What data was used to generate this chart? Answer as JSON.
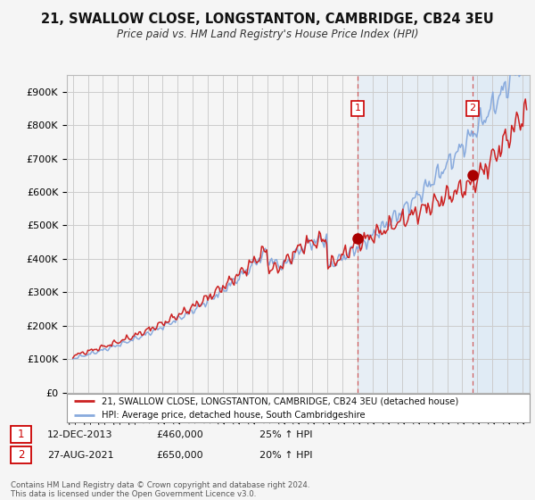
{
  "title": "21, SWALLOW CLOSE, LONGSTANTON, CAMBRIDGE, CB24 3EU",
  "subtitle": "Price paid vs. HM Land Registry's House Price Index (HPI)",
  "background_color": "#f5f5f5",
  "plot_background": "#f5f5f5",
  "grid_color": "#cccccc",
  "y_ticks": [
    0,
    100000,
    200000,
    300000,
    400000,
    500000,
    600000,
    700000,
    800000,
    900000
  ],
  "y_tick_labels": [
    "£0",
    "£100K",
    "£200K",
    "£300K",
    "£400K",
    "£500K",
    "£600K",
    "£700K",
    "£800K",
    "£900K"
  ],
  "sale1_date": "12-DEC-2013",
  "sale1_price": 460000,
  "sale1_pct": "25%",
  "sale2_date": "27-AUG-2021",
  "sale2_price": 650000,
  "sale2_pct": "20%",
  "line1_color": "#cc2222",
  "line2_color": "#88aadd",
  "marker_color": "#aa0000",
  "highlight_fill": "#dce9f5",
  "dashed_color": "#cc4444",
  "legend_label1": "21, SWALLOW CLOSE, LONGSTANTON, CAMBRIDGE, CB24 3EU (detached house)",
  "legend_label2": "HPI: Average price, detached house, South Cambridgeshire",
  "footer": "Contains HM Land Registry data © Crown copyright and database right 2024.\nThis data is licensed under the Open Government Licence v3.0.",
  "sale1_x": 2014.0,
  "sale2_x": 2021.7,
  "x_min": 1994.6,
  "x_max": 2025.5,
  "y_min": 0,
  "y_max": 950000
}
